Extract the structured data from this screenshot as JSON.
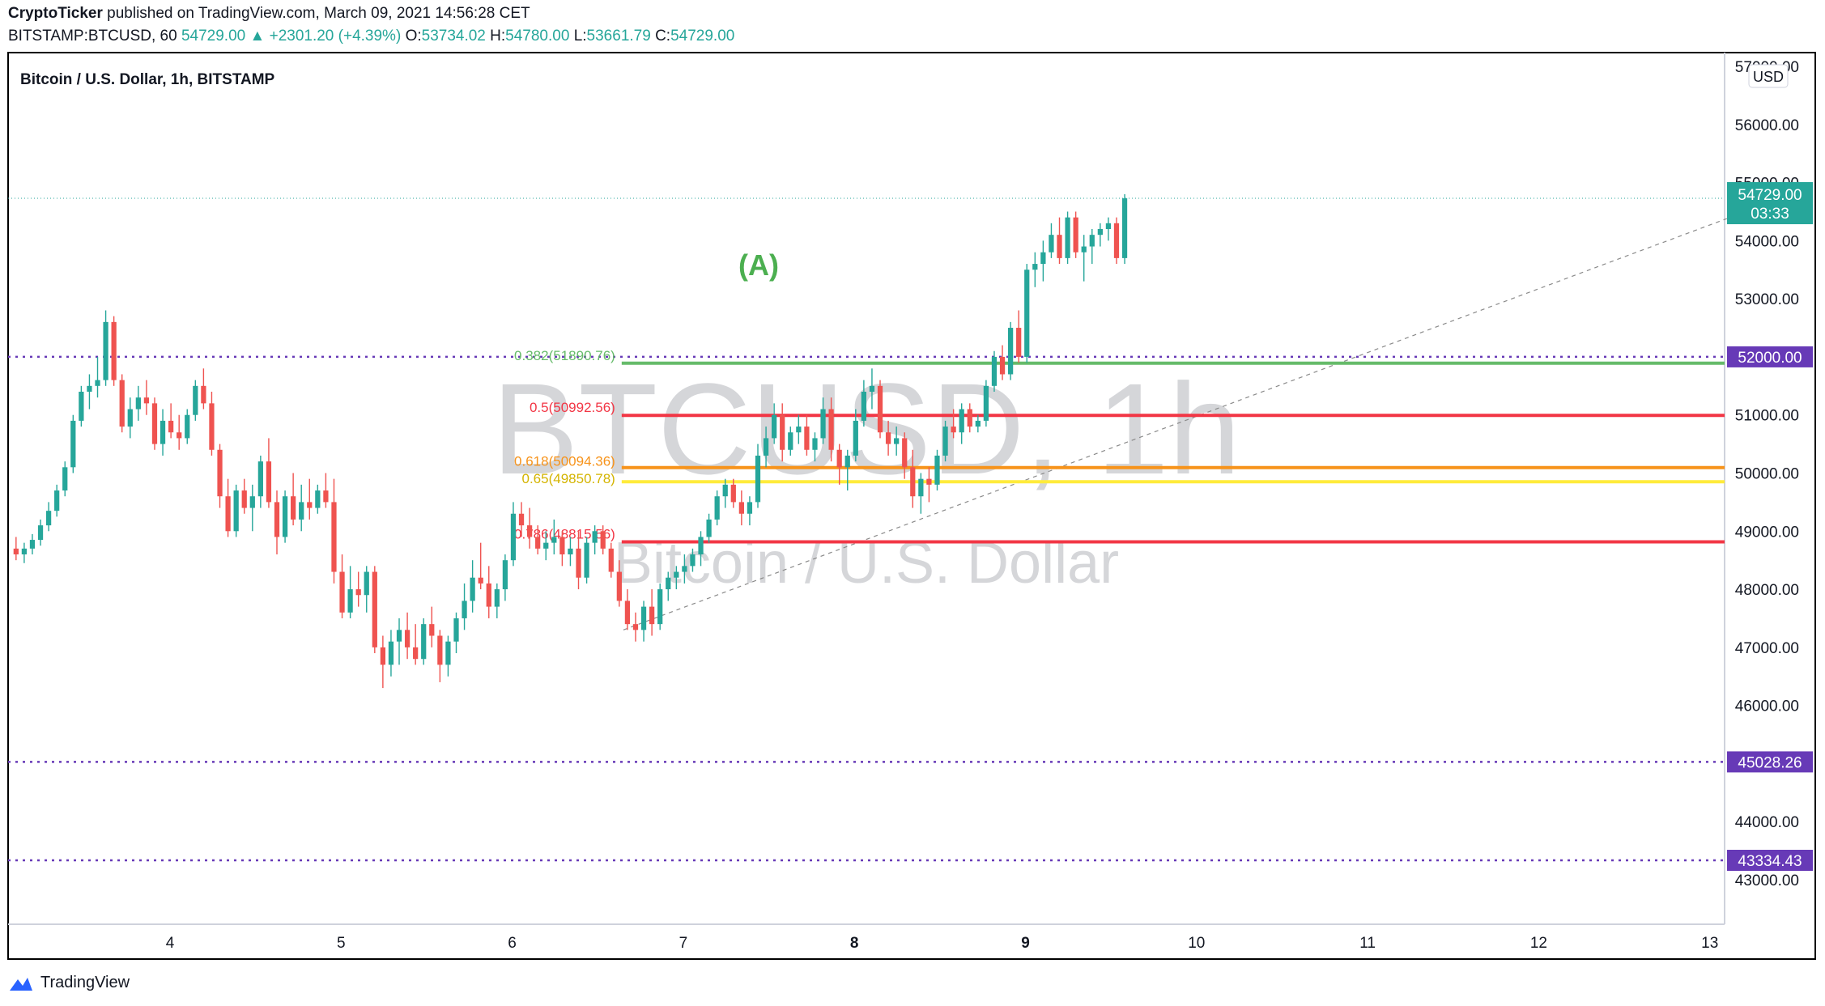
{
  "header": {
    "author": "CryptoTicker",
    "published_text": "published on TradingView.com, March 09, 2021 14:56:28 CET",
    "symbol": "BITSTAMP:BTCUSD, 60",
    "last": "54729.00",
    "change": "+2301.20 (+4.39%)",
    "open_label": "O:",
    "open": "53734.02",
    "high_label": "H:",
    "high": "54780.00",
    "low_label": "L:",
    "low": "53661.79",
    "close_label": "C:",
    "close": "54729.00",
    "change_arrow": "▲"
  },
  "footer": {
    "brand": "TradingView"
  },
  "colors": {
    "up": "#26a69a",
    "down": "#ef5350",
    "fib382": "#66bb6a",
    "fib5": "#f23645",
    "fib618": "#f7931a",
    "fib65": "#ffeb3b",
    "fib786": "#f23645",
    "purple": "#673ab7"
  },
  "chart_data": {
    "type": "candlestick",
    "title": "Bitcoin / U.S. Dollar, 1h, BITSTAMP",
    "watermark_symbol": "BTCUSD, 1h",
    "watermark_name": "Bitcoin / U.S. Dollar",
    "currency": "USD",
    "annotation": "(A)",
    "y_ticks": [
      "57000.00",
      "56000.00",
      "55000.00",
      "54000.00",
      "53000.00",
      "51000.00",
      "50000.00",
      "49000.00",
      "48000.00",
      "47000.00",
      "46000.00",
      "44000.00",
      "43000.00"
    ],
    "x_ticks": [
      "4",
      "5",
      "6",
      "7",
      "8",
      "9",
      "10",
      "11",
      "12",
      "13"
    ],
    "ylim": [
      42300,
      57300
    ],
    "xlim": [
      3.06,
      13.1
    ],
    "last_price": {
      "value": "54729.00",
      "countdown": "03:33"
    },
    "horizontal_levels": [
      {
        "label": "52000.00",
        "value": 52000
      },
      {
        "label": "45028.26",
        "value": 45028.26
      },
      {
        "label": "43334.43",
        "value": 43334.43
      }
    ],
    "fib_levels": [
      {
        "label": "0.382(51890.76)",
        "value": 51890.76
      },
      {
        "label": "0.5(50992.56)",
        "value": 50992.56
      },
      {
        "label": "0.618(50094.36)",
        "value": 50094.36
      },
      {
        "label": "0.65(49850.78)",
        "value": 49850.78
      },
      {
        "label": "0.786(48815.56)",
        "value": 48815.56
      }
    ],
    "trendline": {
      "from": [
        6.65,
        47300
      ],
      "to": [
        13.1,
        54380
      ]
    },
    "ohlc": [
      [
        48700,
        48900,
        48500,
        48600
      ],
      [
        48600,
        48800,
        48450,
        48700
      ],
      [
        48700,
        48950,
        48600,
        48850
      ],
      [
        48850,
        49200,
        48750,
        49100
      ],
      [
        49100,
        49500,
        49000,
        49350
      ],
      [
        49350,
        49800,
        49250,
        49700
      ],
      [
        49700,
        50200,
        49600,
        50100
      ],
      [
        50100,
        51000,
        50000,
        50900
      ],
      [
        50900,
        51500,
        50800,
        51400
      ],
      [
        51400,
        51700,
        51100,
        51500
      ],
      [
        51500,
        52000,
        51300,
        51600
      ],
      [
        51600,
        52800,
        51500,
        52600
      ],
      [
        52600,
        52700,
        51500,
        51600
      ],
      [
        51600,
        51700,
        50700,
        50800
      ],
      [
        50800,
        51300,
        50600,
        51100
      ],
      [
        51100,
        51500,
        50900,
        51300
      ],
      [
        51300,
        51600,
        51000,
        51200
      ],
      [
        51200,
        51300,
        50400,
        50500
      ],
      [
        50500,
        51100,
        50300,
        50900
      ],
      [
        50900,
        51200,
        50600,
        50700
      ],
      [
        50700,
        51000,
        50400,
        50600
      ],
      [
        50600,
        51100,
        50500,
        51000
      ],
      [
        51000,
        51600,
        50900,
        51500
      ],
      [
        51500,
        51800,
        51100,
        51200
      ],
      [
        51200,
        51400,
        50300,
        50400
      ],
      [
        50400,
        50500,
        49400,
        49600
      ],
      [
        49600,
        49900,
        48900,
        49000
      ],
      [
        49000,
        49800,
        48900,
        49700
      ],
      [
        49700,
        49900,
        49300,
        49400
      ],
      [
        49400,
        49800,
        49000,
        49600
      ],
      [
        49600,
        50300,
        49400,
        50200
      ],
      [
        50200,
        50600,
        49400,
        49500
      ],
      [
        49500,
        49700,
        48600,
        48900
      ],
      [
        48900,
        49700,
        48800,
        49600
      ],
      [
        49600,
        50000,
        49100,
        49200
      ],
      [
        49200,
        49800,
        49000,
        49500
      ],
      [
        49500,
        49900,
        49200,
        49400
      ],
      [
        49400,
        49800,
        49300,
        49700
      ],
      [
        49700,
        50000,
        49400,
        49500
      ],
      [
        49500,
        49900,
        48100,
        48300
      ],
      [
        48300,
        48600,
        47500,
        47600
      ],
      [
        47600,
        48400,
        47500,
        48000
      ],
      [
        48000,
        48300,
        47700,
        47900
      ],
      [
        47900,
        48400,
        47600,
        48300
      ],
      [
        48300,
        48400,
        46900,
        47000
      ],
      [
        47000,
        47200,
        46300,
        46700
      ],
      [
        46700,
        47300,
        46500,
        47100
      ],
      [
        47100,
        47500,
        46700,
        47300
      ],
      [
        47300,
        47600,
        46800,
        47000
      ],
      [
        47000,
        47400,
        46700,
        46800
      ],
      [
        46800,
        47500,
        46700,
        47400
      ],
      [
        47400,
        47700,
        47000,
        47200
      ],
      [
        47200,
        47300,
        46400,
        46700
      ],
      [
        46700,
        47200,
        46500,
        47100
      ],
      [
        47100,
        47600,
        46900,
        47500
      ],
      [
        47500,
        48100,
        47300,
        47800
      ],
      [
        47800,
        48500,
        47600,
        48200
      ],
      [
        48200,
        48800,
        48000,
        48100
      ],
      [
        48100,
        48400,
        47500,
        47700
      ],
      [
        47700,
        48100,
        47500,
        48000
      ],
      [
        48000,
        48600,
        47800,
        48500
      ],
      [
        48500,
        49500,
        48400,
        49300
      ],
      [
        49300,
        49500,
        48900,
        49100
      ],
      [
        49100,
        49400,
        48700,
        48900
      ],
      [
        48900,
        49100,
        48600,
        48700
      ],
      [
        48700,
        49000,
        48500,
        48800
      ],
      [
        48800,
        49200,
        48600,
        48900
      ],
      [
        48900,
        49000,
        48400,
        48600
      ],
      [
        48600,
        48900,
        48400,
        48700
      ],
      [
        48700,
        49000,
        48000,
        48200
      ],
      [
        48200,
        48900,
        48100,
        48800
      ],
      [
        48800,
        49100,
        48600,
        49000
      ],
      [
        49000,
        49100,
        48600,
        48700
      ],
      [
        48700,
        48800,
        48200,
        48300
      ],
      [
        48300,
        48500,
        47700,
        47800
      ],
      [
        47800,
        48000,
        47300,
        47400
      ],
      [
        47400,
        47600,
        47100,
        47300
      ],
      [
        47300,
        47800,
        47100,
        47700
      ],
      [
        47700,
        48000,
        47200,
        47400
      ],
      [
        47400,
        48100,
        47300,
        48000
      ],
      [
        48000,
        48300,
        47800,
        48200
      ],
      [
        48200,
        48400,
        48000,
        48300
      ],
      [
        48300,
        48600,
        48100,
        48400
      ],
      [
        48400,
        48700,
        48300,
        48600
      ],
      [
        48600,
        49000,
        48400,
        48900
      ],
      [
        48900,
        49300,
        48800,
        49200
      ],
      [
        49200,
        49700,
        49100,
        49600
      ],
      [
        49600,
        49900,
        49400,
        49800
      ],
      [
        49800,
        49900,
        49400,
        49500
      ],
      [
        49500,
        49700,
        49100,
        49300
      ],
      [
        49300,
        49600,
        49100,
        49500
      ],
      [
        49500,
        50500,
        49400,
        50300
      ],
      [
        50300,
        50800,
        50100,
        50600
      ],
      [
        50600,
        51200,
        50500,
        51000
      ],
      [
        51000,
        51200,
        50200,
        50400
      ],
      [
        50400,
        50800,
        50300,
        50700
      ],
      [
        50700,
        51000,
        50500,
        50800
      ],
      [
        50800,
        51000,
        50300,
        50400
      ],
      [
        50400,
        50700,
        50200,
        50600
      ],
      [
        50600,
        51300,
        50500,
        51100
      ],
      [
        51100,
        51300,
        50200,
        50400
      ],
      [
        50400,
        50500,
        49800,
        50100
      ],
      [
        50100,
        50400,
        49700,
        50300
      ],
      [
        50300,
        51100,
        50200,
        50900
      ],
      [
        50900,
        51600,
        50800,
        51400
      ],
      [
        51400,
        51800,
        51100,
        51500
      ],
      [
        51500,
        51600,
        50600,
        50700
      ],
      [
        50700,
        50900,
        50300,
        50500
      ],
      [
        50500,
        50800,
        50300,
        50600
      ],
      [
        50600,
        50700,
        49900,
        50100
      ],
      [
        50100,
        50400,
        49400,
        49600
      ],
      [
        49600,
        50000,
        49300,
        49900
      ],
      [
        49900,
        50100,
        49500,
        49800
      ],
      [
        49800,
        50400,
        49700,
        50300
      ],
      [
        50300,
        50900,
        50200,
        50800
      ],
      [
        50800,
        51100,
        50600,
        50700
      ],
      [
        50700,
        51200,
        50500,
        51100
      ],
      [
        51100,
        51200,
        50700,
        50800
      ],
      [
        50800,
        51000,
        50700,
        50900
      ],
      [
        50900,
        51600,
        50800,
        51500
      ],
      [
        51500,
        52100,
        51400,
        52000
      ],
      [
        52000,
        52200,
        51600,
        51700
      ],
      [
        51700,
        52600,
        51600,
        52500
      ],
      [
        52500,
        52800,
        51900,
        52000
      ],
      [
        52000,
        53600,
        51900,
        53500
      ],
      [
        53500,
        53800,
        53200,
        53600
      ],
      [
        53600,
        54000,
        53300,
        53800
      ],
      [
        53800,
        54300,
        53700,
        54100
      ],
      [
        54100,
        54400,
        53600,
        53700
      ],
      [
        53700,
        54500,
        53600,
        54400
      ],
      [
        54400,
        54500,
        53700,
        53800
      ],
      [
        53800,
        54100,
        53300,
        53900
      ],
      [
        53900,
        54200,
        53600,
        54100
      ],
      [
        54100,
        54300,
        53900,
        54200
      ],
      [
        54200,
        54400,
        54000,
        54300
      ],
      [
        54300,
        54400,
        53600,
        53700
      ],
      [
        53700,
        54800,
        53600,
        54729
      ]
    ]
  }
}
